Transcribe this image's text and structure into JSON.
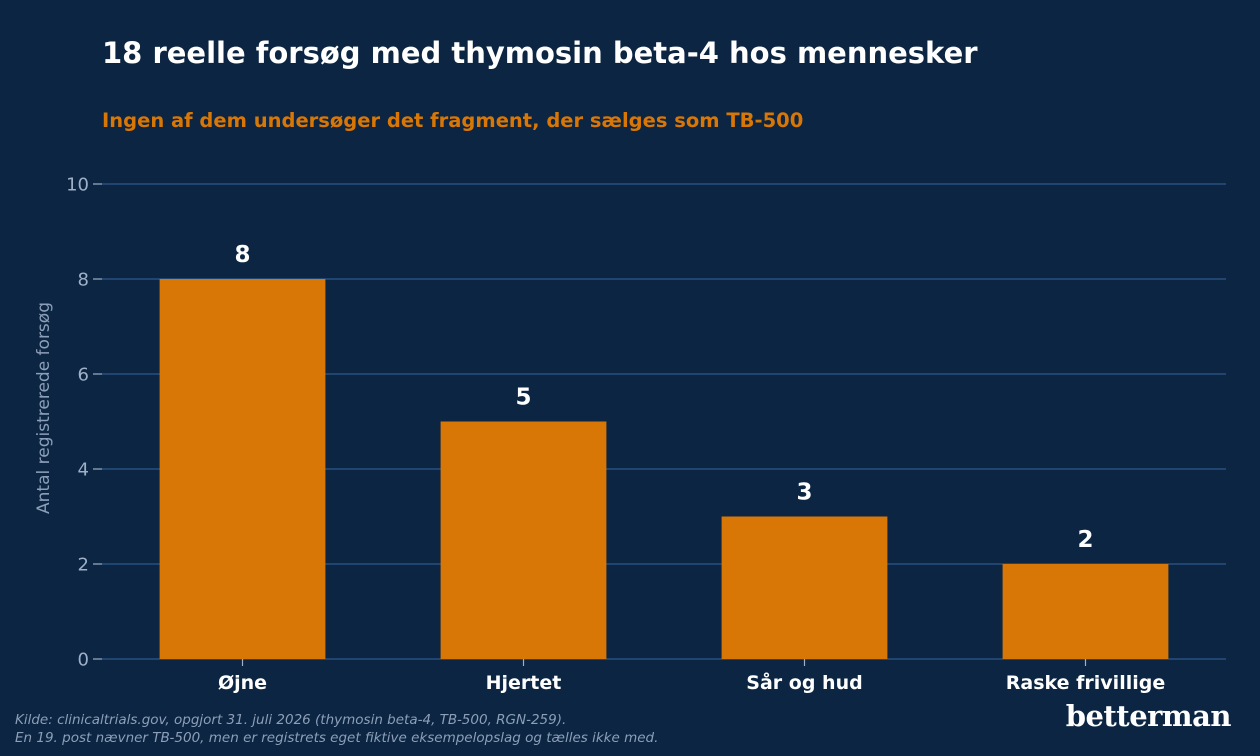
{
  "chart_data": {
    "type": "bar",
    "title": "18 reelle forsøg med thymosin beta-4 hos mennesker",
    "subtitle": "Ingen af dem undersøger det fragment, der sælges som TB-500",
    "ylabel": "Antal registrerede forsøg",
    "xlabel": "",
    "categories": [
      "Øjne",
      "Hjertet",
      "Sår og hud",
      "Raske frivillige"
    ],
    "values": [
      8,
      5,
      3,
      2
    ],
    "data_labels": [
      "8",
      "5",
      "3",
      "2"
    ],
    "ylim": [
      0,
      10
    ],
    "yticks": [
      "0",
      "2",
      "4",
      "6",
      "8",
      "10"
    ],
    "grid": "horizontal",
    "colors": {
      "background": "#0b2542",
      "bar": "#d97706",
      "grid": "#1f4570",
      "tick_text": "#9fb0c8",
      "axis_label": "#8d9fb8"
    }
  },
  "footer": {
    "source_line": "Kilde: clinicaltrials.gov, opgjort 31. juli 2026 (thymosin beta-4, TB-500, RGN-259).",
    "note_line": "En 19. post nævner TB-500, men er registrets eget fiktive eksempelopslag og tælles ikke med."
  },
  "brand": "betterman"
}
